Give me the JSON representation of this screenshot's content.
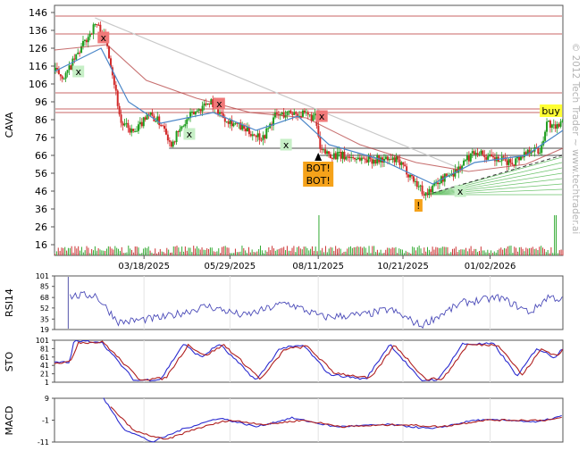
{
  "chart_data": [
    {
      "type": "candlestick",
      "ylabel": "CAVA",
      "yticks": [
        16,
        26,
        36,
        46,
        56,
        66,
        76,
        86,
        96,
        106,
        116,
        126,
        136,
        146
      ],
      "ylim": [
        10,
        150
      ],
      "date_labels": [
        "03/18/2025",
        "05/29/2025",
        "08/11/2025",
        "10/21/2025",
        "01/02/2026"
      ],
      "x_range": [
        "2025-01-02",
        "2026-03-04"
      ],
      "watermark": "© 2012 Tech Trader ~ www.techtrader.ai",
      "price_keypoints": [
        {
          "date": "2025-01-02",
          "value": 113
        },
        {
          "date": "2025-01-10",
          "value": 110
        },
        {
          "date": "2025-01-20",
          "value": 122
        },
        {
          "date": "2025-02-05",
          "value": 140
        },
        {
          "date": "2025-02-14",
          "value": 130
        },
        {
          "date": "2025-02-20",
          "value": 108
        },
        {
          "date": "2025-02-26",
          "value": 84
        },
        {
          "date": "2025-03-10",
          "value": 78
        },
        {
          "date": "2025-03-20",
          "value": 90
        },
        {
          "date": "2025-04-04",
          "value": 82
        },
        {
          "date": "2025-04-08",
          "value": 72
        },
        {
          "date": "2025-04-25",
          "value": 88
        },
        {
          "date": "2025-05-12",
          "value": 97
        },
        {
          "date": "2025-05-22",
          "value": 88
        },
        {
          "date": "2025-06-10",
          "value": 80
        },
        {
          "date": "2025-06-25",
          "value": 76
        },
        {
          "date": "2025-07-05",
          "value": 88
        },
        {
          "date": "2025-07-20",
          "value": 90
        },
        {
          "date": "2025-08-08",
          "value": 87
        },
        {
          "date": "2025-08-12",
          "value": 68
        },
        {
          "date": "2025-08-25",
          "value": 66
        },
        {
          "date": "2025-09-20",
          "value": 64
        },
        {
          "date": "2025-10-15",
          "value": 63
        },
        {
          "date": "2025-10-25",
          "value": 56
        },
        {
          "date": "2025-11-08",
          "value": 44
        },
        {
          "date": "2025-11-20",
          "value": 52
        },
        {
          "date": "2025-12-05",
          "value": 58
        },
        {
          "date": "2025-12-20",
          "value": 69
        },
        {
          "date": "2026-01-02",
          "value": 64
        },
        {
          "date": "2026-01-20",
          "value": 62
        },
        {
          "date": "2026-02-05",
          "value": 70
        },
        {
          "date": "2026-02-12",
          "value": 68
        },
        {
          "date": "2026-02-18",
          "value": 85
        },
        {
          "date": "2026-02-25",
          "value": 80
        },
        {
          "date": "2026-03-04",
          "value": 89
        }
      ],
      "ma_fast_keypoints": [
        {
          "date": "2025-01-02",
          "value": 113
        },
        {
          "date": "2025-02-10",
          "value": 126
        },
        {
          "date": "2025-03-05",
          "value": 96
        },
        {
          "date": "2025-04-01",
          "value": 84
        },
        {
          "date": "2025-05-15",
          "value": 90
        },
        {
          "date": "2025-06-20",
          "value": 80
        },
        {
          "date": "2025-07-25",
          "value": 88
        },
        {
          "date": "2025-08-20",
          "value": 72
        },
        {
          "date": "2025-10-01",
          "value": 64
        },
        {
          "date": "2025-11-15",
          "value": 50
        },
        {
          "date": "2025-12-20",
          "value": 62
        },
        {
          "date": "2026-02-01",
          "value": 66
        },
        {
          "date": "2026-03-04",
          "value": 80
        }
      ],
      "ma_slow_keypoints": [
        {
          "date": "2025-01-02",
          "value": 125
        },
        {
          "date": "2025-02-15",
          "value": 128
        },
        {
          "date": "2025-03-20",
          "value": 108
        },
        {
          "date": "2025-05-01",
          "value": 98
        },
        {
          "date": "2025-06-15",
          "value": 90
        },
        {
          "date": "2025-08-01",
          "value": 87
        },
        {
          "date": "2025-09-15",
          "value": 72
        },
        {
          "date": "2025-11-01",
          "value": 62
        },
        {
          "date": "2025-12-15",
          "value": 57
        },
        {
          "date": "2026-02-01",
          "value": 61
        },
        {
          "date": "2026-03-04",
          "value": 70
        }
      ],
      "horizontal_levels": [
        {
          "value": 144,
          "color": "#c86464"
        },
        {
          "value": 134,
          "color": "#c86464"
        },
        {
          "value": 101,
          "color": "#c86464"
        },
        {
          "value": 92,
          "color": "#c86464"
        },
        {
          "value": 90,
          "color": "#c86464"
        },
        {
          "value": 70,
          "color": "#888888",
          "from": "2025-04-08"
        },
        {
          "value": 66,
          "color": "#888888",
          "from": "2025-08-11"
        }
      ],
      "trendline": {
        "from": {
          "date": "2025-02-05",
          "value": 143
        },
        "to": {
          "date": "2025-12-10",
          "value": 58
        }
      },
      "support_fan": {
        "from": {
          "date": "2025-11-10",
          "value": 44
        },
        "to_values": [
          65,
          62,
          59,
          56,
          53,
          50,
          47,
          44
        ]
      },
      "signals": [
        {
          "label": "x",
          "kind": "sell",
          "date": "2025-02-12",
          "value": 132
        },
        {
          "label": "x",
          "kind": "buy",
          "date": "2025-01-22",
          "value": 113
        },
        {
          "label": "x",
          "kind": "sell",
          "date": "2025-05-20",
          "value": 95
        },
        {
          "label": "x",
          "kind": "buy",
          "date": "2025-04-25",
          "value": 78
        },
        {
          "label": "x",
          "kind": "buy",
          "date": "2025-07-15",
          "value": 72
        },
        {
          "label": "x",
          "kind": "sell",
          "date": "2025-08-14",
          "value": 88
        },
        {
          "label": "x",
          "kind": "buy",
          "date": "2025-12-08",
          "value": 46
        },
        {
          "label": "BOT!",
          "kind": "bot",
          "date": "2025-08-11",
          "value": 59
        },
        {
          "label": "BOT!",
          "kind": "bot",
          "date": "2025-08-11",
          "value": 52
        },
        {
          "label": "!",
          "kind": "warn",
          "date": "2025-11-03",
          "value": 38
        },
        {
          "label": "buy",
          "kind": "buy-tag",
          "date": "2026-02-22",
          "value": 91
        }
      ],
      "volume_spike_dates": [
        "2025-08-11",
        "2026-02-25"
      ]
    },
    {
      "type": "line",
      "ylabel": "RSI14",
      "yticks": [
        19,
        35,
        52,
        68,
        85,
        101
      ],
      "ylim": [
        19,
        101
      ],
      "keypoints": [
        {
          "date": "2025-01-15",
          "value": 70
        },
        {
          "date": "2025-02-05",
          "value": 72
        },
        {
          "date": "2025-02-25",
          "value": 30
        },
        {
          "date": "2025-04-05",
          "value": 38
        },
        {
          "date": "2025-05-10",
          "value": 55
        },
        {
          "date": "2025-06-10",
          "value": 40
        },
        {
          "date": "2025-07-15",
          "value": 60
        },
        {
          "date": "2025-08-15",
          "value": 38
        },
        {
          "date": "2025-09-20",
          "value": 42
        },
        {
          "date": "2025-10-10",
          "value": 50
        },
        {
          "date": "2025-11-05",
          "value": 25
        },
        {
          "date": "2025-12-10",
          "value": 60
        },
        {
          "date": "2026-01-10",
          "value": 68
        },
        {
          "date": "2026-02-05",
          "value": 45
        },
        {
          "date": "2026-02-20",
          "value": 70
        },
        {
          "date": "2026-03-04",
          "value": 64
        }
      ]
    },
    {
      "type": "line",
      "ylabel": "STO",
      "yticks": [
        1,
        21,
        41,
        61,
        81,
        101
      ],
      "ylim": [
        1,
        101
      ],
      "series": [
        {
          "color": "#2c2cd0",
          "keypoints": [
            {
              "date": "2025-01-02",
              "value": 48
            },
            {
              "date": "2025-01-15",
              "value": 48
            },
            {
              "date": "2025-01-18",
              "value": 98
            },
            {
              "date": "2025-02-10",
              "value": 98
            },
            {
              "date": "2025-03-10",
              "value": 5
            },
            {
              "date": "2025-04-01",
              "value": 8
            },
            {
              "date": "2025-04-20",
              "value": 92
            },
            {
              "date": "2025-05-05",
              "value": 60
            },
            {
              "date": "2025-05-20",
              "value": 92
            },
            {
              "date": "2025-06-20",
              "value": 5
            },
            {
              "date": "2025-07-10",
              "value": 82
            },
            {
              "date": "2025-07-30",
              "value": 88
            },
            {
              "date": "2025-08-20",
              "value": 20
            },
            {
              "date": "2025-09-20",
              "value": 8
            },
            {
              "date": "2025-10-10",
              "value": 92
            },
            {
              "date": "2025-11-05",
              "value": 5
            },
            {
              "date": "2025-11-20",
              "value": 8
            },
            {
              "date": "2025-12-10",
              "value": 92
            },
            {
              "date": "2026-01-05",
              "value": 92
            },
            {
              "date": "2026-01-25",
              "value": 15
            },
            {
              "date": "2026-02-10",
              "value": 82
            },
            {
              "date": "2026-02-25",
              "value": 60
            },
            {
              "date": "2026-03-04",
              "value": 82
            }
          ]
        },
        {
          "color": "#b02020",
          "keypoints": [
            {
              "date": "2025-01-02",
              "value": 48
            },
            {
              "date": "2025-01-15",
              "value": 48
            },
            {
              "date": "2025-01-22",
              "value": 96
            },
            {
              "date": "2025-02-12",
              "value": 96
            },
            {
              "date": "2025-03-14",
              "value": 8
            },
            {
              "date": "2025-04-05",
              "value": 10
            },
            {
              "date": "2025-04-24",
              "value": 90
            },
            {
              "date": "2025-05-08",
              "value": 64
            },
            {
              "date": "2025-05-24",
              "value": 90
            },
            {
              "date": "2025-06-24",
              "value": 8
            },
            {
              "date": "2025-07-14",
              "value": 80
            },
            {
              "date": "2025-08-02",
              "value": 86
            },
            {
              "date": "2025-08-24",
              "value": 24
            },
            {
              "date": "2025-09-24",
              "value": 10
            },
            {
              "date": "2025-10-14",
              "value": 90
            },
            {
              "date": "2025-11-09",
              "value": 8
            },
            {
              "date": "2025-11-24",
              "value": 10
            },
            {
              "date": "2025-12-14",
              "value": 90
            },
            {
              "date": "2026-01-09",
              "value": 90
            },
            {
              "date": "2026-01-29",
              "value": 18
            },
            {
              "date": "2026-02-14",
              "value": 80
            },
            {
              "date": "2026-02-27",
              "value": 64
            },
            {
              "date": "2026-03-04",
              "value": 78
            }
          ]
        }
      ]
    },
    {
      "type": "line",
      "ylabel": "MACD",
      "yticks": [
        -11,
        -1,
        9
      ],
      "ylim": [
        -11,
        9
      ],
      "series": [
        {
          "color": "#2c2cd0",
          "keypoints": [
            {
              "date": "2025-02-12",
              "value": 9
            },
            {
              "date": "2025-03-01",
              "value": -5
            },
            {
              "date": "2025-03-25",
              "value": -11
            },
            {
              "date": "2025-04-20",
              "value": -5
            },
            {
              "date": "2025-05-20",
              "value": 0
            },
            {
              "date": "2025-06-20",
              "value": -4
            },
            {
              "date": "2025-07-20",
              "value": 0
            },
            {
              "date": "2025-08-25",
              "value": -4
            },
            {
              "date": "2025-10-10",
              "value": -3
            },
            {
              "date": "2025-11-15",
              "value": -5
            },
            {
              "date": "2025-12-20",
              "value": -1
            },
            {
              "date": "2026-01-20",
              "value": -1
            },
            {
              "date": "2026-02-10",
              "value": -2
            },
            {
              "date": "2026-03-04",
              "value": 1
            }
          ]
        },
        {
          "color": "#b02020",
          "keypoints": [
            {
              "date": "2025-02-18",
              "value": 5
            },
            {
              "date": "2025-03-10",
              "value": -6
            },
            {
              "date": "2025-04-05",
              "value": -10
            },
            {
              "date": "2025-04-30",
              "value": -5
            },
            {
              "date": "2025-05-28",
              "value": -1
            },
            {
              "date": "2025-06-28",
              "value": -3
            },
            {
              "date": "2025-07-28",
              "value": -1
            },
            {
              "date": "2025-09-01",
              "value": -4
            },
            {
              "date": "2025-10-18",
              "value": -3
            },
            {
              "date": "2025-11-22",
              "value": -4
            },
            {
              "date": "2025-12-28",
              "value": -1
            },
            {
              "date": "2026-01-28",
              "value": -1
            },
            {
              "date": "2026-02-18",
              "value": -1
            },
            {
              "date": "2026-03-04",
              "value": 0
            }
          ]
        }
      ]
    }
  ]
}
